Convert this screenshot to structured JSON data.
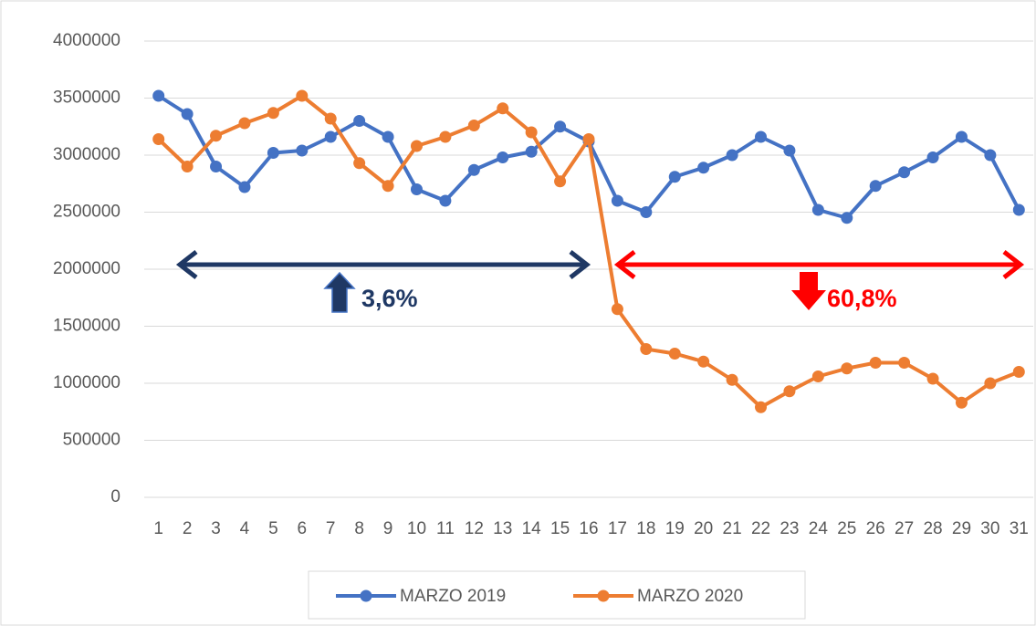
{
  "chart_data": {
    "type": "line",
    "categories": [
      "1",
      "2",
      "3",
      "4",
      "5",
      "6",
      "7",
      "8",
      "9",
      "10",
      "11",
      "12",
      "13",
      "14",
      "15",
      "16",
      "17",
      "18",
      "19",
      "20",
      "21",
      "22",
      "23",
      "24",
      "25",
      "26",
      "27",
      "28",
      "29",
      "30",
      "31"
    ],
    "series": [
      {
        "name": "MARZO 2019",
        "color": "#4472c4",
        "values": [
          3520000,
          3360000,
          2900000,
          2720000,
          3020000,
          3040000,
          3160000,
          3300000,
          3160000,
          2700000,
          2600000,
          2870000,
          2980000,
          3030000,
          3250000,
          3120000,
          2600000,
          2500000,
          2810000,
          2890000,
          3000000,
          3160000,
          3040000,
          2520000,
          2450000,
          2730000,
          2850000,
          2980000,
          3160000,
          3000000,
          2520000
        ]
      },
      {
        "name": "MARZO 2020",
        "color": "#ed7d31",
        "values": [
          3140000,
          2900000,
          3170000,
          3280000,
          3370000,
          3520000,
          3320000,
          2930000,
          2730000,
          3080000,
          3160000,
          3260000,
          3410000,
          3200000,
          2770000,
          3140000,
          1650000,
          1300000,
          1260000,
          1190000,
          1030000,
          790000,
          930000,
          1060000,
          1130000,
          1180000,
          1180000,
          1040000,
          830000,
          1000000,
          1100000
        ]
      }
    ],
    "ylim": [
      0,
      4000000
    ],
    "yticks": [
      0,
      500000,
      1000000,
      1500000,
      2000000,
      2500000,
      3000000,
      3500000,
      4000000
    ],
    "grid": true,
    "legend": "bottom",
    "annotations": [
      {
        "text": "3,6%",
        "color": "#1f3864"
      },
      {
        "text": "60,8%",
        "color": "#ff0000"
      }
    ]
  }
}
